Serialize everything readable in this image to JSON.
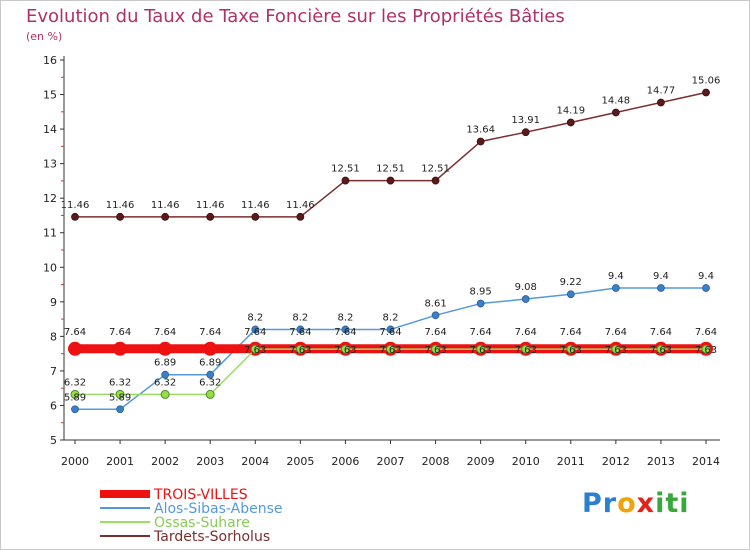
{
  "chart_data": {
    "type": "line",
    "title": "Evolution du Taux de Taxe Foncière sur les Propriétés Bâties",
    "subtitle": "(en %)",
    "xlabel": "",
    "ylabel": "",
    "categories": [
      "2000",
      "2001",
      "2002",
      "2003",
      "2004",
      "2005",
      "2006",
      "2007",
      "2008",
      "2009",
      "2010",
      "2011",
      "2012",
      "2013",
      "2014"
    ],
    "ylim": [
      5,
      16
    ],
    "yticks": [
      "5",
      "6",
      "7",
      "8",
      "9",
      "10",
      "11",
      "12",
      "13",
      "14",
      "15",
      "16"
    ],
    "grid": false,
    "legend_position": "bottom-left",
    "series": [
      {
        "name": "TROIS-VILLES",
        "color": "#ee1111",
        "values": [
          7.64,
          7.64,
          7.64,
          7.64,
          7.64,
          7.64,
          7.64,
          7.64,
          7.64,
          7.64,
          7.64,
          7.64,
          7.64,
          7.64,
          7.64
        ],
        "labels": [
          "7.64",
          "7.64",
          "7.64",
          "7.64",
          "7.64",
          "7.64",
          "7.64",
          "7.64",
          "7.64",
          "7.64",
          "7.64",
          "7.64",
          "7.64",
          "7.64",
          "7.64"
        ]
      },
      {
        "name": "Alos-Sibas-Abense",
        "color": "#5599dd",
        "values": [
          5.89,
          5.89,
          6.89,
          6.89,
          8.2,
          8.2,
          8.2,
          8.2,
          8.61,
          8.95,
          9.08,
          9.22,
          9.4,
          9.4,
          9.4
        ],
        "labels": [
          "5.89",
          "5.89",
          "6.89",
          "6.89",
          "8.2",
          "8.2",
          "8.2",
          "8.2",
          "8.61",
          "8.95",
          "9.08",
          "9.22",
          "9.4",
          "9.4",
          "9.4"
        ]
      },
      {
        "name": "Ossas-Suhare",
        "color": "#99dd66",
        "values": [
          6.32,
          6.32,
          6.32,
          6.32,
          7.63,
          7.63,
          7.63,
          7.63,
          7.63,
          7.63,
          7.63,
          7.63,
          7.63,
          7.63,
          7.63
        ],
        "labels": [
          "6.32",
          "6.32",
          "6.32",
          "6.32",
          "7.63",
          "7.63",
          "7.63",
          "7.63",
          "7.63",
          "7.63",
          "7.63",
          "7.63",
          "7.63",
          "7.63",
          "7.63"
        ]
      },
      {
        "name": "Tardets-Sorholus",
        "color": "#7a2e2e",
        "values": [
          11.46,
          11.46,
          11.46,
          11.46,
          11.46,
          11.46,
          12.51,
          12.51,
          12.51,
          13.64,
          13.91,
          14.19,
          14.48,
          14.77,
          15.06
        ],
        "labels": [
          "11.46",
          "11.46",
          "11.46",
          "11.46",
          "11.46",
          "11.46",
          "12.51",
          "12.51",
          "12.51",
          "13.64",
          "13.91",
          "14.19",
          "14.48",
          "14.77",
          "15.06"
        ]
      }
    ]
  },
  "brand": {
    "part1": "Pr",
    "part2": "o",
    "part3": "x",
    "part4": "iti"
  }
}
